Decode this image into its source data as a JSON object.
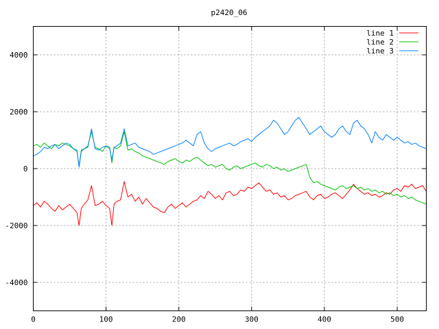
{
  "chart_data": {
    "type": "line",
    "title": "p2420_06",
    "xlabel": "",
    "ylabel": "",
    "xlim": [
      0,
      540
    ],
    "ylim": [
      -5000,
      5000
    ],
    "x_ticks": [
      0,
      100,
      200,
      300,
      400,
      500
    ],
    "y_ticks": [
      -4000,
      -2000,
      0,
      2000,
      4000
    ],
    "grid": true,
    "legend_position": "top-right",
    "series": [
      {
        "name": "line 1",
        "color": "#ff0000",
        "x": [
          0,
          5,
          10,
          15,
          20,
          25,
          30,
          35,
          40,
          45,
          50,
          55,
          60,
          63,
          66,
          70,
          75,
          80,
          85,
          90,
          95,
          100,
          105,
          108,
          111,
          115,
          120,
          125,
          130,
          135,
          140,
          145,
          150,
          155,
          160,
          165,
          170,
          175,
          180,
          185,
          190,
          195,
          200,
          205,
          210,
          215,
          220,
          225,
          230,
          235,
          240,
          245,
          250,
          255,
          260,
          265,
          270,
          275,
          280,
          285,
          290,
          295,
          300,
          305,
          310,
          315,
          320,
          325,
          330,
          335,
          340,
          345,
          350,
          355,
          360,
          365,
          370,
          375,
          380,
          385,
          390,
          395,
          400,
          405,
          410,
          415,
          420,
          425,
          430,
          435,
          440,
          445,
          450,
          455,
          460,
          465,
          470,
          475,
          480,
          485,
          490,
          495,
          500,
          505,
          510,
          515,
          520,
          525,
          530,
          535,
          540
        ],
        "values": [
          -1300,
          -1200,
          -1350,
          -1150,
          -1250,
          -1400,
          -1500,
          -1300,
          -1450,
          -1350,
          -1250,
          -1400,
          -1550,
          -2000,
          -1400,
          -1250,
          -1100,
          -600,
          -1300,
          -1250,
          -1150,
          -1300,
          -1400,
          -2000,
          -1250,
          -1150,
          -1100,
          -450,
          -1000,
          -900,
          -1150,
          -1000,
          -1250,
          -1050,
          -1200,
          -1350,
          -1400,
          -1500,
          -1550,
          -1350,
          -1250,
          -1400,
          -1300,
          -1200,
          -1350,
          -1250,
          -1150,
          -1100,
          -950,
          -1050,
          -800,
          -900,
          -1050,
          -950,
          -1100,
          -850,
          -800,
          -950,
          -900,
          -750,
          -800,
          -650,
          -700,
          -600,
          -500,
          -650,
          -800,
          -750,
          -900,
          -850,
          -1000,
          -950,
          -1100,
          -1050,
          -950,
          -900,
          -850,
          -800,
          -1000,
          -1100,
          -950,
          -900,
          -1050,
          -1000,
          -900,
          -850,
          -950,
          -1050,
          -900,
          -750,
          -550,
          -700,
          -800,
          -900,
          -850,
          -950,
          -900,
          -1000,
          -950,
          -850,
          -900,
          -750,
          -700,
          -800,
          -600,
          -650,
          -550,
          -700,
          -650,
          -600,
          -800
        ]
      },
      {
        "name": "line 2",
        "color": "#00c000",
        "x": [
          0,
          5,
          10,
          15,
          20,
          25,
          30,
          35,
          40,
          45,
          50,
          55,
          60,
          63,
          66,
          70,
          75,
          80,
          85,
          90,
          95,
          100,
          105,
          108,
          111,
          115,
          120,
          125,
          130,
          135,
          140,
          145,
          150,
          155,
          160,
          165,
          170,
          175,
          180,
          185,
          190,
          195,
          200,
          205,
          210,
          215,
          220,
          225,
          230,
          235,
          240,
          245,
          250,
          255,
          260,
          265,
          270,
          275,
          280,
          285,
          290,
          295,
          300,
          305,
          310,
          315,
          320,
          325,
          330,
          335,
          340,
          345,
          350,
          355,
          360,
          365,
          370,
          375,
          380,
          385,
          390,
          395,
          400,
          405,
          410,
          415,
          420,
          425,
          430,
          435,
          440,
          445,
          450,
          455,
          460,
          465,
          470,
          475,
          480,
          485,
          490,
          495,
          500,
          505,
          510,
          515,
          520,
          525,
          530,
          535,
          540
        ],
        "values": [
          800,
          850,
          750,
          900,
          800,
          700,
          850,
          800,
          900,
          850,
          800,
          700,
          600,
          100,
          650,
          700,
          800,
          1300,
          750,
          700,
          600,
          800,
          750,
          200,
          750,
          700,
          800,
          1300,
          650,
          700,
          600,
          550,
          450,
          400,
          350,
          300,
          250,
          200,
          150,
          250,
          300,
          350,
          250,
          200,
          300,
          250,
          350,
          400,
          300,
          200,
          100,
          150,
          50,
          100,
          150,
          0,
          -50,
          50,
          100,
          0,
          50,
          100,
          150,
          200,
          100,
          50,
          150,
          100,
          0,
          50,
          -50,
          0,
          -100,
          -50,
          0,
          50,
          100,
          150,
          -300,
          -500,
          -450,
          -550,
          -600,
          -650,
          -700,
          -750,
          -650,
          -600,
          -700,
          -650,
          -600,
          -700,
          -650,
          -750,
          -700,
          -800,
          -750,
          -850,
          -800,
          -900,
          -850,
          -950,
          -900,
          -1000,
          -950,
          -1050,
          -1000,
          -1100,
          -1150,
          -1200,
          -1250
        ]
      },
      {
        "name": "line 3",
        "color": "#0080ff",
        "x": [
          0,
          5,
          10,
          15,
          20,
          25,
          30,
          35,
          40,
          45,
          50,
          55,
          60,
          63,
          66,
          70,
          75,
          80,
          85,
          90,
          95,
          100,
          105,
          108,
          111,
          115,
          120,
          125,
          130,
          135,
          140,
          145,
          150,
          155,
          160,
          165,
          170,
          175,
          180,
          185,
          190,
          195,
          200,
          205,
          210,
          215,
          220,
          225,
          230,
          235,
          240,
          245,
          250,
          255,
          260,
          265,
          270,
          275,
          280,
          285,
          290,
          295,
          300,
          305,
          310,
          315,
          320,
          325,
          330,
          335,
          340,
          345,
          350,
          355,
          360,
          365,
          370,
          375,
          380,
          385,
          390,
          395,
          400,
          405,
          410,
          415,
          420,
          425,
          430,
          435,
          440,
          445,
          450,
          455,
          460,
          465,
          470,
          475,
          480,
          485,
          490,
          495,
          500,
          505,
          510,
          515,
          520,
          525,
          530,
          535,
          540
        ],
        "values": [
          450,
          500,
          600,
          750,
          700,
          800,
          850,
          700,
          800,
          900,
          850,
          700,
          650,
          50,
          600,
          700,
          750,
          1400,
          700,
          650,
          750,
          800,
          700,
          300,
          750,
          800,
          900,
          1400,
          800,
          850,
          900,
          750,
          700,
          650,
          600,
          500,
          550,
          600,
          650,
          700,
          750,
          800,
          850,
          900,
          1000,
          900,
          800,
          1200,
          1300,
          900,
          700,
          600,
          700,
          750,
          800,
          850,
          900,
          800,
          850,
          950,
          1000,
          1050,
          950,
          1100,
          1200,
          1300,
          1400,
          1500,
          1700,
          1600,
          1400,
          1200,
          1300,
          1500,
          1700,
          1800,
          1600,
          1400,
          1200,
          1300,
          1400,
          1500,
          1300,
          1200,
          1100,
          1200,
          1400,
          1500,
          1300,
          1200,
          1600,
          1700,
          1500,
          1400,
          1200,
          900,
          1300,
          1100,
          1000,
          1200,
          1100,
          1000,
          1100,
          1000,
          900,
          950,
          850,
          900,
          800,
          750,
          700
        ]
      }
    ]
  }
}
